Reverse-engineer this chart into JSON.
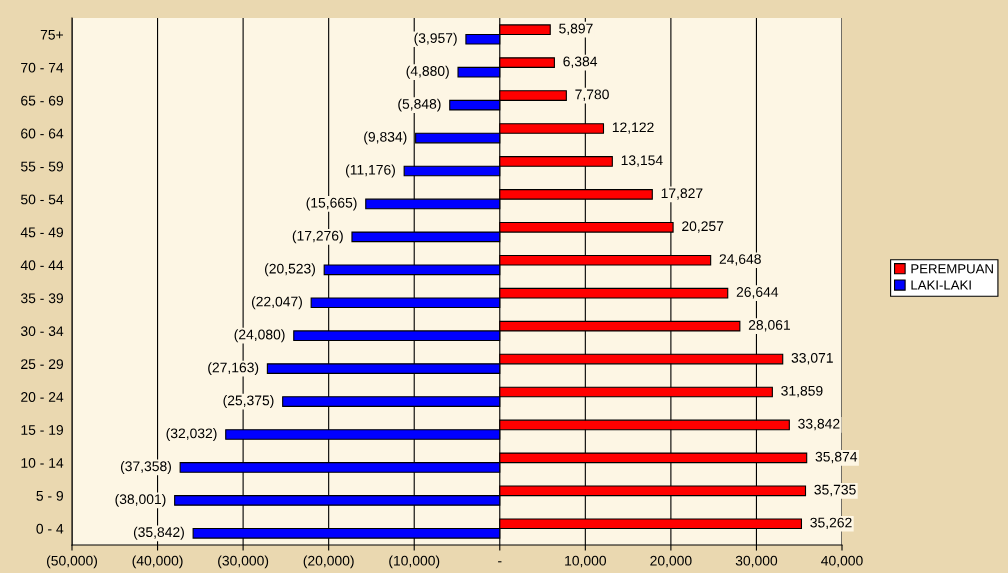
{
  "chart_data": {
    "type": "bar",
    "orientation": "horizontal",
    "categories": [
      "75+",
      "70 - 74",
      "65 - 69",
      "60 - 64",
      "55 - 59",
      "50 - 54",
      "45 - 49",
      "40 - 44",
      "35 - 39",
      "30 - 34",
      "25 - 29",
      "20 - 24",
      "15 - 19",
      "10 - 14",
      "5 - 9",
      "0 - 4"
    ],
    "series": [
      {
        "name": "PEREMPUAN",
        "color": "#ff0000",
        "values": [
          5897,
          6384,
          7780,
          12122,
          13154,
          17827,
          20257,
          24648,
          26644,
          28061,
          33071,
          31859,
          33842,
          35874,
          35735,
          35262
        ],
        "value_labels": [
          "5,897",
          "6,384",
          "7,780",
          "12,122",
          "13,154",
          "17,827",
          "20,257",
          "24,648",
          "26,644",
          "28,061",
          "33,071",
          "31,859",
          "33,842",
          "35,874",
          "35,735",
          "35,262"
        ]
      },
      {
        "name": "LAKI-LAKI",
        "color": "#0000ff",
        "values": [
          -3957,
          -4880,
          -5848,
          -9834,
          -11176,
          -15665,
          -17276,
          -20523,
          -22047,
          -24080,
          -27163,
          -25375,
          -32032,
          -37358,
          -38001,
          -35842
        ],
        "value_labels": [
          "(3,957)",
          "(4,880)",
          "(5,848)",
          "(9,834)",
          "(11,176)",
          "(15,665)",
          "(17,276)",
          "(20,523)",
          "(22,047)",
          "(24,080)",
          "(27,163)",
          "(25,375)",
          "(32,032)",
          "(37,358)",
          "(38,001)",
          "(35,842)"
        ]
      }
    ],
    "xlim": [
      -50000,
      40000
    ],
    "xticks": [
      {
        "value": -50000,
        "label": "(50,000)"
      },
      {
        "value": -40000,
        "label": "(40,000)"
      },
      {
        "value": -30000,
        "label": "(30,000)"
      },
      {
        "value": -20000,
        "label": "(20,000)"
      },
      {
        "value": -10000,
        "label": "(10,000)"
      },
      {
        "value": 0,
        "label": "-"
      },
      {
        "value": 10000,
        "label": "10,000"
      },
      {
        "value": 20000,
        "label": "20,000"
      },
      {
        "value": 30000,
        "label": "30,000"
      },
      {
        "value": 40000,
        "label": "40,000"
      }
    ],
    "grid": "x",
    "legend": "right"
  }
}
